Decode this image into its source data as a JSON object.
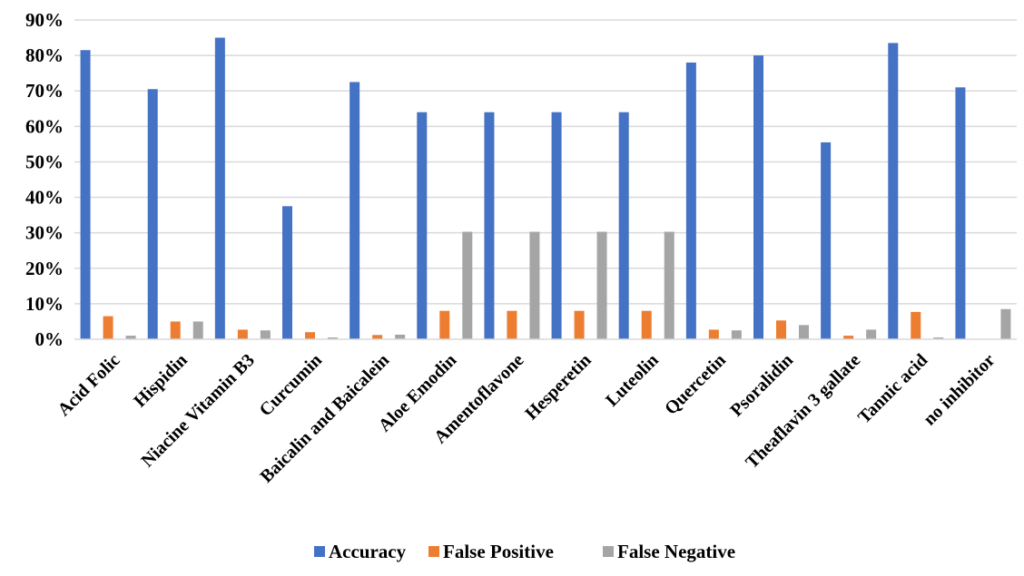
{
  "chart_data": {
    "type": "bar",
    "title": "",
    "xlabel": "",
    "ylabel": "",
    "ylim": [
      0,
      90
    ],
    "y_tick_values": [
      0,
      10,
      20,
      30,
      40,
      50,
      60,
      70,
      80,
      90
    ],
    "y_tick_labels": [
      "0%",
      "10%",
      "20%",
      "30%",
      "40%",
      "50%",
      "60%",
      "70%",
      "80%",
      "90%"
    ],
    "grid": true,
    "legend_position": "bottom",
    "categories": [
      "Acid Folic",
      "Hispidin",
      "Niacine Vitamin B3",
      "Curcumin",
      "Baicalin and Baicalein",
      "Aloe Emodin",
      "Amentoflavone",
      "Hesperetin",
      "Luteolin",
      "Quercetin",
      "Psoralidin",
      "Theaflavin 3 gallate",
      "Tannic acid",
      "no inhibitor"
    ],
    "series": [
      {
        "name": "Accuracy",
        "color": "#4472C4",
        "values": [
          81.5,
          70.5,
          85.0,
          37.5,
          72.5,
          64.0,
          64.0,
          64.0,
          64.0,
          78.0,
          80.0,
          55.5,
          83.5,
          71.0
        ]
      },
      {
        "name": "False Positive",
        "color": "#ED7D31",
        "values": [
          6.5,
          5.0,
          2.7,
          2.0,
          1.2,
          8.0,
          8.0,
          8.0,
          8.0,
          2.7,
          5.3,
          1.0,
          7.7,
          0.0
        ]
      },
      {
        "name": "False Negative",
        "color": "#A5A5A5",
        "values": [
          1.0,
          5.0,
          2.5,
          0.5,
          1.3,
          30.3,
          30.3,
          30.3,
          30.3,
          2.5,
          4.0,
          2.7,
          0.5,
          8.5
        ]
      }
    ]
  }
}
